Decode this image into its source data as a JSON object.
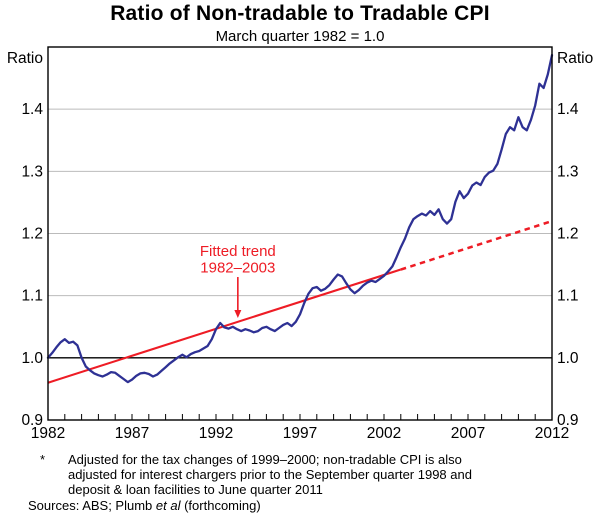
{
  "header": {
    "title": "Ratio of Non-tradable to Tradable CPI",
    "subtitle": "March quarter 1982 = 1.0"
  },
  "axis": {
    "y_unit_label": "Ratio",
    "y_ticks": [
      1.4,
      1.3,
      1.2,
      1.1,
      1.0,
      0.9
    ],
    "baseline": 1.0,
    "ylim": [
      0.9,
      1.5
    ],
    "xlim": [
      1982,
      2012
    ],
    "x_minor_tick_step": 1,
    "x_label_years": [
      1982,
      1987,
      1992,
      1997,
      2002,
      2007,
      2012
    ],
    "grid": "horizontal-only",
    "dual_axis_labels": true
  },
  "colors": {
    "series_blue": "#2E3194",
    "trend_red": "#EE1C25",
    "gridline_gray": "#bbbbbb",
    "axis_black": "#000000"
  },
  "chart_data": {
    "type": "line",
    "title": "Ratio of Non-tradable to Tradable CPI",
    "subtitle": "March quarter 1982 = 1.0",
    "xlabel": "",
    "ylabel": "Ratio",
    "ylim": [
      0.9,
      1.5
    ],
    "xlim": [
      1982,
      2012
    ],
    "x_start": 1982.0,
    "x_step": 0.25,
    "series": [
      {
        "name": "Non-tradable to tradable CPI ratio",
        "color": "#2E3194",
        "values": [
          1.0,
          1.008,
          1.017,
          1.025,
          1.03,
          1.024,
          1.026,
          1.02,
          1.0,
          0.986,
          0.98,
          0.975,
          0.972,
          0.97,
          0.973,
          0.977,
          0.976,
          0.971,
          0.966,
          0.961,
          0.965,
          0.971,
          0.975,
          0.976,
          0.974,
          0.97,
          0.973,
          0.979,
          0.985,
          0.991,
          0.996,
          1.001,
          1.005,
          1.001,
          1.006,
          1.009,
          1.011,
          1.015,
          1.019,
          1.03,
          1.046,
          1.056,
          1.049,
          1.047,
          1.05,
          1.046,
          1.043,
          1.046,
          1.044,
          1.041,
          1.043,
          1.048,
          1.05,
          1.046,
          1.043,
          1.048,
          1.053,
          1.056,
          1.051,
          1.058,
          1.07,
          1.088,
          1.103,
          1.112,
          1.114,
          1.108,
          1.111,
          1.117,
          1.126,
          1.134,
          1.131,
          1.12,
          1.11,
          1.104,
          1.109,
          1.116,
          1.121,
          1.124,
          1.122,
          1.127,
          1.132,
          1.139,
          1.147,
          1.162,
          1.178,
          1.192,
          1.21,
          1.223,
          1.228,
          1.232,
          1.229,
          1.236,
          1.23,
          1.239,
          1.223,
          1.216,
          1.223,
          1.251,
          1.268,
          1.257,
          1.264,
          1.277,
          1.282,
          1.278,
          1.291,
          1.298,
          1.301,
          1.312,
          1.335,
          1.36,
          1.371,
          1.366,
          1.387,
          1.371,
          1.366,
          1.383,
          1.406,
          1.441,
          1.434,
          1.456,
          1.487
        ]
      }
    ],
    "trend": {
      "name": "Fitted trend 1982–2003",
      "color": "#EE1C25",
      "start": {
        "year": 1982.0,
        "value": 0.96
      },
      "solid_end": {
        "year": 2003.0,
        "value": 1.142
      },
      "dashed_end": {
        "year": 2012.0,
        "value": 1.22
      }
    },
    "annotation": {
      "lines": [
        "Fitted trend",
        "1982–2003"
      ],
      "color": "#EE1C25",
      "x_year": 1993.3,
      "text_line_values": [
        1.172,
        1.145
      ],
      "arrow_from_value": 1.13,
      "arrow_to_value": 1.064
    },
    "legend_position": "none"
  },
  "footnotes": {
    "marker": "*",
    "lines": [
      "Adjusted for the tax changes of 1999–2000; non-tradable CPI is also",
      "adjusted for interest chargers prior to the September quarter 1998 and",
      "deposit & loan facilities to June quarter 2011"
    ],
    "sources_prefix": "Sources: ABS; Plumb ",
    "sources_italic": "et al",
    "sources_suffix": " (forthcoming)"
  }
}
